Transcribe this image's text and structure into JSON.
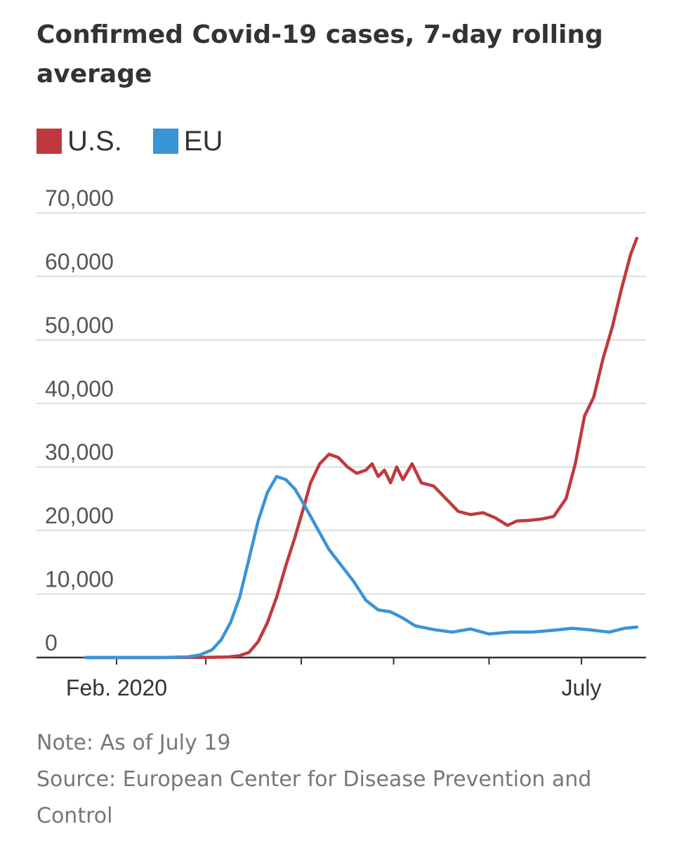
{
  "header": {
    "title": "Confirmed Covid-19 cases, 7-day rolling average"
  },
  "colors": {
    "us": "#c0393e",
    "eu": "#3a94d6",
    "grid": "#dddddd",
    "axis": "#333333"
  },
  "footer": {
    "note": "Note: As of July 19",
    "source": "Source: European Center for Disease Prevention and Control"
  },
  "chart_data": {
    "type": "line",
    "title": "Confirmed Covid-19 cases, 7-day rolling average",
    "xlabel": "",
    "ylabel": "",
    "legend": "top-left",
    "grid": true,
    "ylim": [
      0,
      70000
    ],
    "yticks": [
      {
        "value": 0,
        "label": "0"
      },
      {
        "value": 10000,
        "label": "10,000"
      },
      {
        "value": 20000,
        "label": "20,000"
      },
      {
        "value": 30000,
        "label": "30,000"
      },
      {
        "value": 40000,
        "label": "40,000"
      },
      {
        "value": 50000,
        "label": "50,000"
      },
      {
        "value": 60000,
        "label": "60,000"
      },
      {
        "value": 70000,
        "label": "70,000"
      }
    ],
    "xlim": [
      "2020-01-06",
      "2020-07-22"
    ],
    "xticks": [
      {
        "date": "2020-02-01",
        "label": "Feb. 2020"
      },
      {
        "date": "2020-03-01",
        "label": ""
      },
      {
        "date": "2020-04-01",
        "label": ""
      },
      {
        "date": "2020-05-01",
        "label": ""
      },
      {
        "date": "2020-06-01",
        "label": ""
      },
      {
        "date": "2020-07-01",
        "label": "July"
      }
    ],
    "series": [
      {
        "name": "U.S.",
        "color": "#c0393e",
        "points": [
          [
            "2020-01-22",
            0
          ],
          [
            "2020-02-15",
            0
          ],
          [
            "2020-03-01",
            20
          ],
          [
            "2020-03-08",
            80
          ],
          [
            "2020-03-12",
            300
          ],
          [
            "2020-03-15",
            800
          ],
          [
            "2020-03-18",
            2500
          ],
          [
            "2020-03-21",
            5500
          ],
          [
            "2020-03-24",
            9500
          ],
          [
            "2020-03-27",
            14500
          ],
          [
            "2020-03-30",
            19000
          ],
          [
            "2020-04-02",
            24000
          ],
          [
            "2020-04-04",
            27500
          ],
          [
            "2020-04-07",
            30500
          ],
          [
            "2020-04-10",
            32000
          ],
          [
            "2020-04-13",
            31500
          ],
          [
            "2020-04-16",
            30000
          ],
          [
            "2020-04-19",
            29000
          ],
          [
            "2020-04-22",
            29500
          ],
          [
            "2020-04-24",
            30500
          ],
          [
            "2020-04-26",
            28500
          ],
          [
            "2020-04-28",
            29500
          ],
          [
            "2020-04-30",
            27500
          ],
          [
            "2020-05-02",
            30000
          ],
          [
            "2020-05-04",
            28000
          ],
          [
            "2020-05-07",
            30500
          ],
          [
            "2020-05-10",
            27500
          ],
          [
            "2020-05-14",
            27000
          ],
          [
            "2020-05-18",
            25000
          ],
          [
            "2020-05-22",
            23000
          ],
          [
            "2020-05-26",
            22500
          ],
          [
            "2020-05-30",
            22800
          ],
          [
            "2020-06-03",
            22000
          ],
          [
            "2020-06-07",
            20800
          ],
          [
            "2020-06-10",
            21500
          ],
          [
            "2020-06-14",
            21600
          ],
          [
            "2020-06-18",
            21800
          ],
          [
            "2020-06-22",
            22200
          ],
          [
            "2020-06-26",
            25000
          ],
          [
            "2020-06-29",
            30500
          ],
          [
            "2020-07-02",
            38000
          ],
          [
            "2020-07-05",
            41000
          ],
          [
            "2020-07-08",
            47000
          ],
          [
            "2020-07-11",
            52000
          ],
          [
            "2020-07-14",
            58000
          ],
          [
            "2020-07-17",
            63500
          ],
          [
            "2020-07-19",
            66000
          ]
        ]
      },
      {
        "name": "EU",
        "color": "#3a94d6",
        "points": [
          [
            "2020-01-22",
            0
          ],
          [
            "2020-02-15",
            0
          ],
          [
            "2020-02-24",
            100
          ],
          [
            "2020-02-28",
            400
          ],
          [
            "2020-03-03",
            1200
          ],
          [
            "2020-03-06",
            2800
          ],
          [
            "2020-03-09",
            5500
          ],
          [
            "2020-03-12",
            9500
          ],
          [
            "2020-03-15",
            15500
          ],
          [
            "2020-03-18",
            21500
          ],
          [
            "2020-03-21",
            26000
          ],
          [
            "2020-03-24",
            28500
          ],
          [
            "2020-03-27",
            28000
          ],
          [
            "2020-03-30",
            26500
          ],
          [
            "2020-04-02",
            24000
          ],
          [
            "2020-04-06",
            20500
          ],
          [
            "2020-04-10",
            17000
          ],
          [
            "2020-04-14",
            14500
          ],
          [
            "2020-04-18",
            12000
          ],
          [
            "2020-04-22",
            9000
          ],
          [
            "2020-04-26",
            7500
          ],
          [
            "2020-04-30",
            7200
          ],
          [
            "2020-05-04",
            6200
          ],
          [
            "2020-05-08",
            5000
          ],
          [
            "2020-05-14",
            4400
          ],
          [
            "2020-05-20",
            4000
          ],
          [
            "2020-05-26",
            4500
          ],
          [
            "2020-06-01",
            3700
          ],
          [
            "2020-06-08",
            4000
          ],
          [
            "2020-06-15",
            4000
          ],
          [
            "2020-06-22",
            4300
          ],
          [
            "2020-06-28",
            4600
          ],
          [
            "2020-07-03",
            4400
          ],
          [
            "2020-07-10",
            4000
          ],
          [
            "2020-07-15",
            4600
          ],
          [
            "2020-07-19",
            4800
          ]
        ]
      }
    ]
  }
}
